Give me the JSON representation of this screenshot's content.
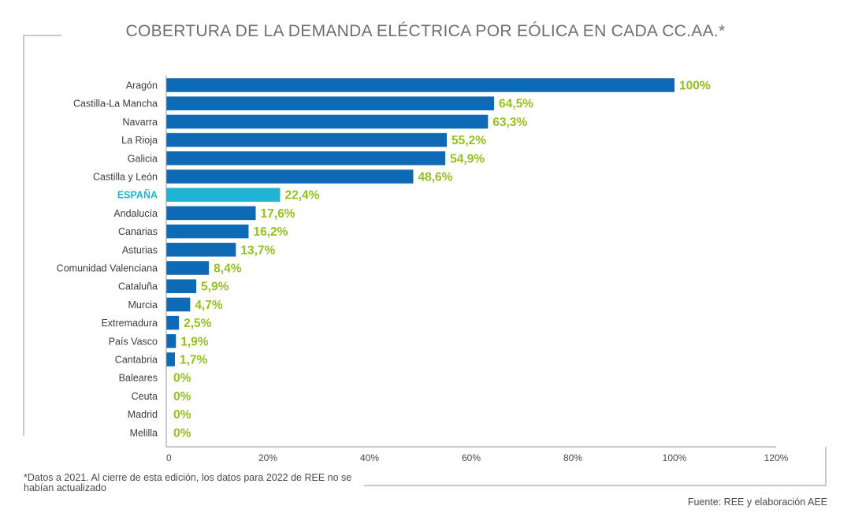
{
  "chart_data": {
    "type": "bar",
    "orientation": "horizontal",
    "title": "COBERTURA DE LA DEMANDA ELÉCTRICA POR EÓLICA EN CADA CC.AA.*",
    "categories": [
      "Aragón",
      "Castilla-La Mancha",
      "Navarra",
      "La Rioja",
      "Galicia",
      "Castilla y León",
      "ESPAÑA",
      "Andalucía",
      "Canarias",
      "Asturias",
      "Comunidad Valenciana",
      "Cataluña",
      "Murcia",
      "Extremadura",
      "País Vasco",
      "Cantabria",
      "Baleares",
      "Ceuta",
      "Madrid",
      "Melilla"
    ],
    "values": [
      100,
      64.5,
      63.3,
      55.2,
      54.9,
      48.6,
      22.4,
      17.6,
      16.2,
      13.7,
      8.4,
      5.9,
      4.7,
      2.5,
      1.9,
      1.7,
      0,
      0,
      0,
      0
    ],
    "value_labels": [
      "100%",
      "64,5%",
      "63,3%",
      "55,2%",
      "54,9%",
      "48,6%",
      "22,4%",
      "17,6%",
      "16,2%",
      "13,7%",
      "8,4%",
      "5,9%",
      "4,7%",
      "2,5%",
      "1,9%",
      "1,7%",
      "0%",
      "0%",
      "0%",
      "0%"
    ],
    "highlight_category": "ESPAÑA",
    "xlim": [
      0,
      120
    ],
    "xticks": [
      0,
      20,
      40,
      60,
      80,
      100,
      120
    ],
    "xtick_labels": [
      "0",
      "20%",
      "40%",
      "60%",
      "80%",
      "100%",
      "120%"
    ],
    "xlabel": "",
    "ylabel": "",
    "grid": false,
    "colors": {
      "bar": "#0e6ab5",
      "bar_highlight": "#1fb3d6",
      "value_label": "#95c11f",
      "highlight_label": "#1fb3d6"
    }
  },
  "footnote": "*Datos a 2021. Al cierre de esta edición, los datos para 2022 de REE no se habían actualizado",
  "source": "Fuente: REE y elaboración AEE"
}
